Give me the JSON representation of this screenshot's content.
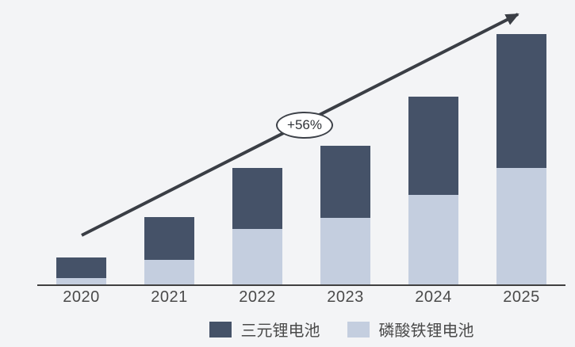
{
  "page": {
    "background_color": "#f3f4f6",
    "axis_color": "#404040",
    "arrow_color": "#3a3e45",
    "text_color": "#4a4a4a"
  },
  "chart_data": {
    "type": "bar",
    "stacked": true,
    "title": "",
    "xlabel": "",
    "ylabel": "",
    "categories": [
      "2020",
      "2021",
      "2022",
      "2023",
      "2024",
      "2025"
    ],
    "series": [
      {
        "name": "三元锂电池",
        "key": "ternary-lithium-battery",
        "color": "#455268",
        "values": [
          26,
          54,
          77,
          91,
          124,
          169
        ]
      },
      {
        "name": "磷酸铁锂电池",
        "key": "lfp-battery",
        "color": "#c4cedf",
        "values": [
          8,
          31,
          70,
          84,
          113,
          147
        ]
      }
    ],
    "stack_order_bottom_to_top": [
      "磷酸铁锂电池",
      "三元锂电池"
    ],
    "values_unit": "relative units (no y-axis shown, read from bar pixel heights)",
    "annotation": {
      "label": "+56%"
    },
    "trend_arrow": true,
    "legend_position": "bottom",
    "grid": false,
    "y_axis_visible": false,
    "x_axis_visible": true
  }
}
